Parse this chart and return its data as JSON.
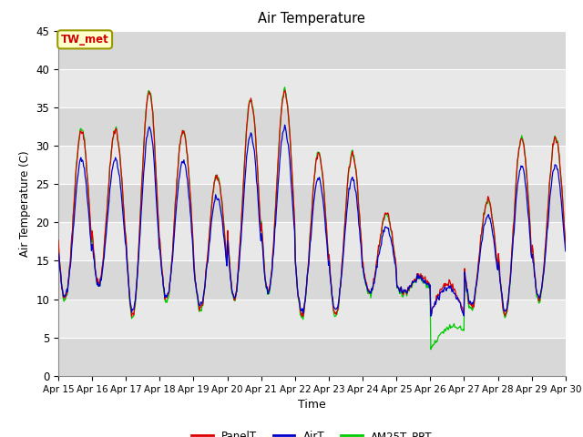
{
  "title": "Air Temperature",
  "xlabel": "Time",
  "ylabel": "Air Temperature (C)",
  "ylim": [
    0,
    45
  ],
  "xlim": [
    0,
    15
  ],
  "background_color": "#ffffff",
  "plot_bg_color": "#e8e8e8",
  "band_colors": [
    "#d8d8d8",
    "#e8e8e8"
  ],
  "grid_color": "#ffffff",
  "annotation_text": "TW_met",
  "annotation_bg": "#ffffcc",
  "annotation_border": "#999900",
  "annotation_text_color": "#cc0000",
  "legend_labels": [
    "PanelT",
    "AirT",
    "AM25T_PRT"
  ],
  "line_colors": [
    "#dd0000",
    "#0000cc",
    "#00cc00"
  ],
  "xtick_labels": [
    "Apr 15",
    "Apr 16",
    "Apr 17",
    "Apr 18",
    "Apr 19",
    "Apr 20",
    "Apr 21",
    "Apr 22",
    "Apr 23",
    "Apr 24",
    "Apr 25",
    "Apr 26",
    "Apr 27",
    "Apr 28",
    "Apr 29",
    "Apr 30"
  ],
  "ytick_vals": [
    0,
    5,
    10,
    15,
    20,
    25,
    30,
    35,
    40,
    45
  ]
}
